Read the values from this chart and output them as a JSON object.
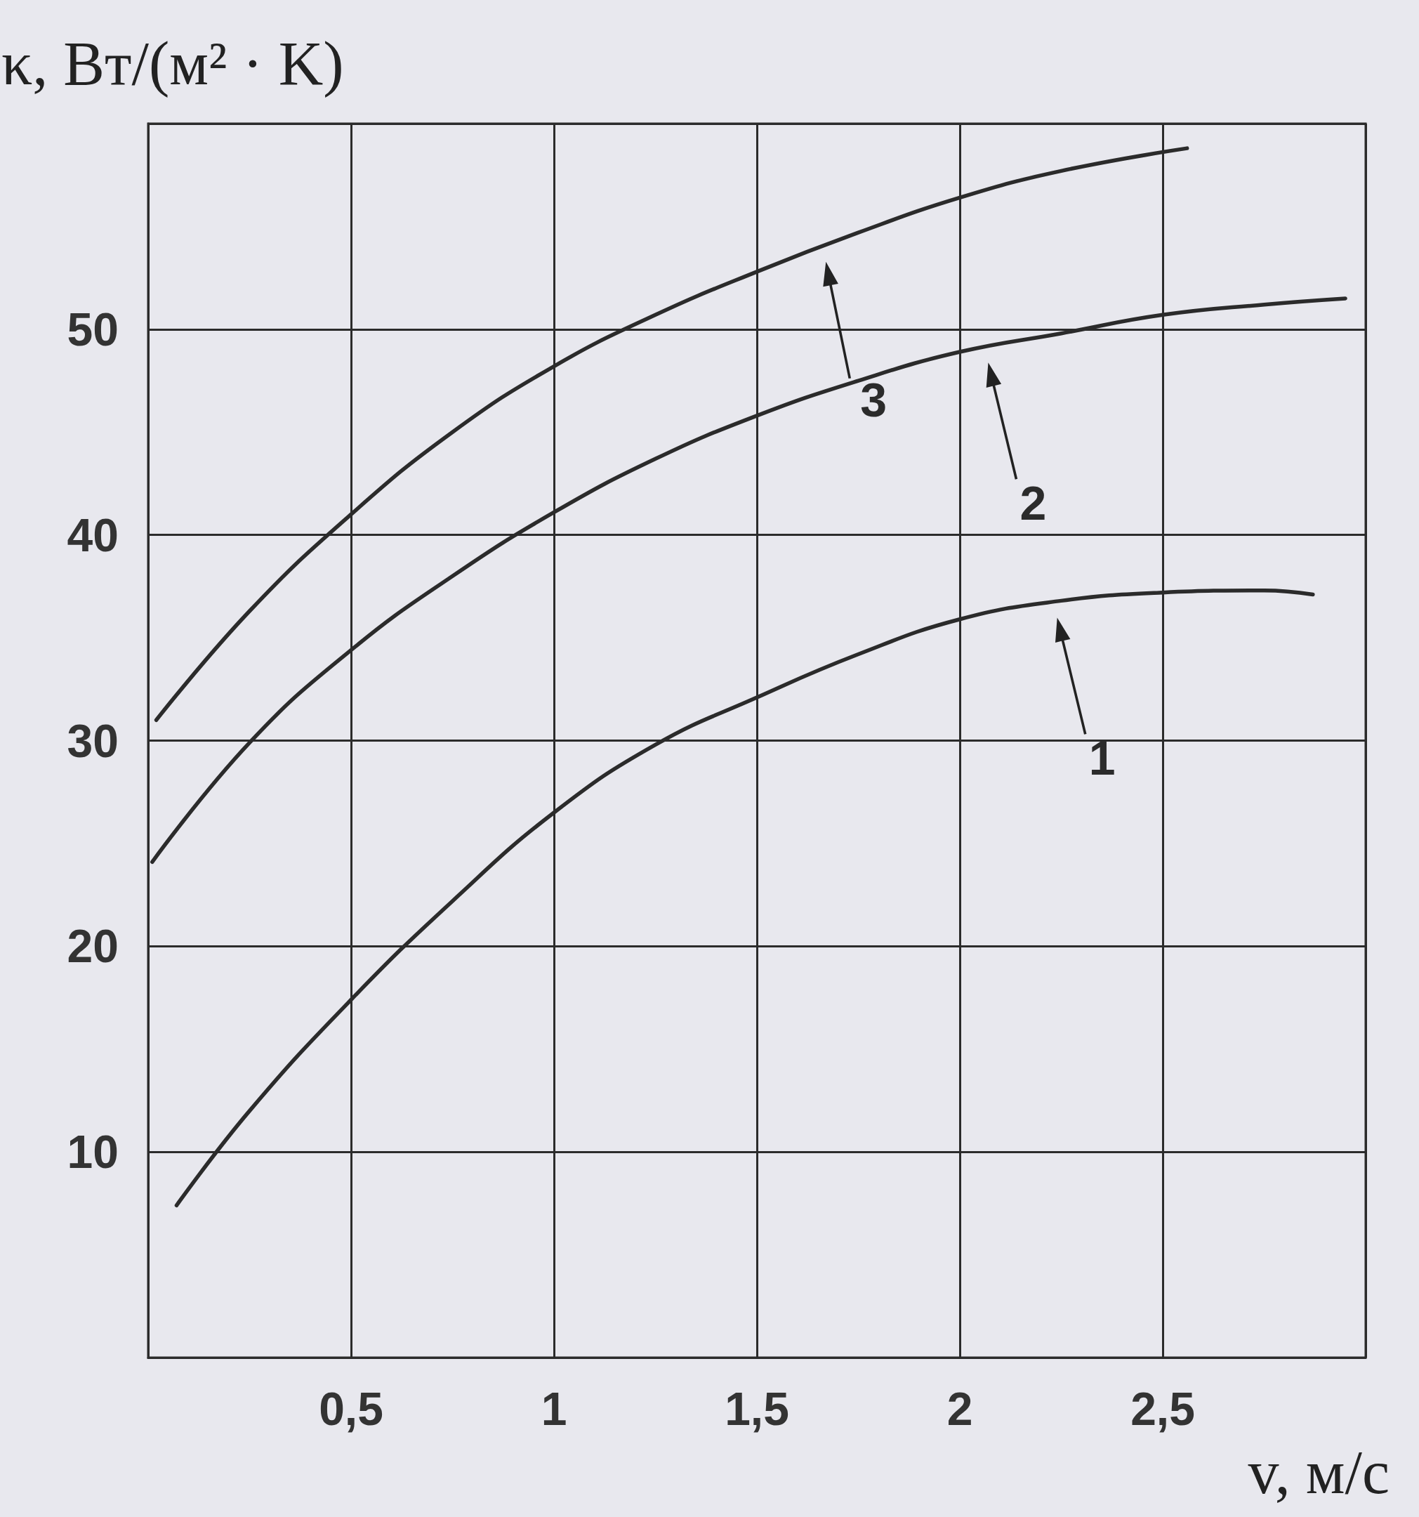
{
  "chart_data": {
    "type": "line",
    "xlabel": "v, м/с",
    "ylabel": "κ, Вт/(м² · K)",
    "series": [
      {
        "color": "#2b2b2b",
        "x": [
          0.07,
          0.25,
          0.5,
          0.75,
          1,
          1.25,
          1.5,
          1.75,
          2,
          2.25,
          2.5,
          2.75,
          2.87
        ],
        "values": [
          7.4,
          12,
          17.4,
          22.2,
          26.5,
          29.8,
          32.1,
          34.2,
          35.9,
          36.8,
          37.2,
          37.3,
          37.1
        ]
      },
      {
        "color": "#2b2b2b",
        "x": [
          0.01,
          0.25,
          0.5,
          0.75,
          1,
          1.25,
          1.5,
          1.75,
          2,
          2.25,
          2.5,
          2.75,
          2.95
        ],
        "values": [
          24.1,
          29.9,
          34.4,
          38,
          41.1,
          43.7,
          45.8,
          47.5,
          48.9,
          49.8,
          50.7,
          51.2,
          51.5
        ]
      },
      {
        "color": "#2b2b2b",
        "x": [
          0.02,
          0.25,
          0.5,
          0.75,
          1,
          1.25,
          1.5,
          1.75,
          2,
          2.25,
          2.56
        ],
        "values": [
          31,
          36.3,
          41,
          45,
          48.2,
          50.7,
          52.8,
          54.7,
          56.4,
          57.7,
          58.8
        ]
      }
    ],
    "annotations": [
      {
        "text": "3",
        "x": 1.67,
        "y": 54.1
      },
      {
        "text": "2",
        "x": 2.07,
        "y": 49.2
      },
      {
        "text": "1",
        "x": 2.24,
        "y": 36.8
      }
    ],
    "xlim": [
      0,
      3
    ],
    "ylim": [
      0,
      60
    ],
    "xticks": [
      {
        "value": 0,
        "label": null
      },
      {
        "value": 0.5,
        "label": "0,5"
      },
      1,
      {
        "value": 1.5,
        "label": "1,5"
      },
      2,
      {
        "value": 2.5,
        "label": "2,5"
      },
      {
        "value": 3,
        "label": null
      }
    ],
    "yticks": [
      {
        "value": 0,
        "label": null
      },
      10,
      20,
      30,
      40,
      50,
      {
        "value": 60,
        "label": null
      }
    ],
    "grid": true,
    "marker": "none",
    "line_style": "solid"
  }
}
